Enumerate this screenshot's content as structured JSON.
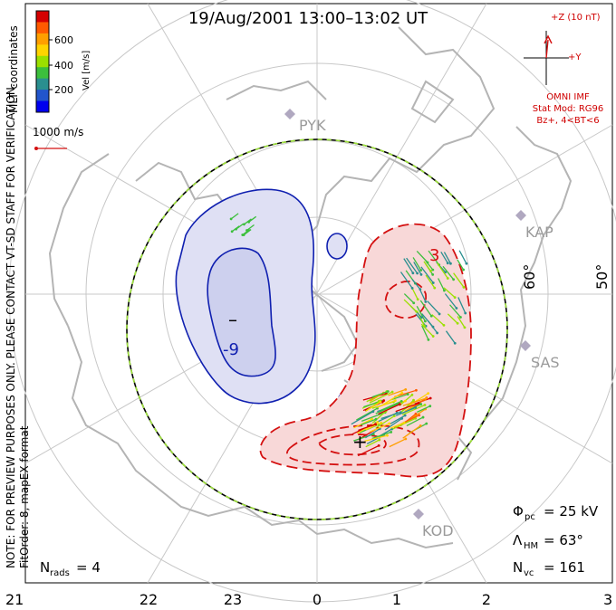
{
  "title": "19/Aug/2001 13:00–13:02 UT",
  "coordinate_label": "MLT coordinates",
  "colorbar": {
    "label": "Vel [m/s]",
    "ticks": [
      "600",
      "400",
      "200"
    ],
    "colors": [
      "#d40000",
      "#ff5a00",
      "#ff9f00",
      "#ffd400",
      "#9be000",
      "#3cbf3c",
      "#2a8f8f",
      "#2255cc",
      "#0000ee"
    ]
  },
  "scale_vector_label": "1000 m/s",
  "imf": {
    "z_label": "+Z (10 nT)",
    "y_label": "+Y",
    "source": "OMNI IMF",
    "model": "Stat Mod: RG96",
    "condition": "Bz+, 4<BT<6"
  },
  "notes": {
    "preview": "NOTE: FOR PREVIEW PURPOSES ONLY. PLEASE CONTACT VT-SD STAFF FOR VERIFICATION.",
    "fit": "FitOrder: 8, mapEX format"
  },
  "radars": [
    "PYK",
    "KAP",
    "SAS",
    "KOD"
  ],
  "latitude_labels": [
    "60°",
    "50°"
  ],
  "contour_labels": {
    "negative": "-9",
    "positive": "3"
  },
  "extrema": {
    "min": "–",
    "max": "+"
  },
  "stats": {
    "phi_symbol": "Φ",
    "phi_sub": "pc",
    "phi_value": "= 25 kV",
    "lambda_symbol": "Λ",
    "lambda_sub": "HM",
    "lambda_value": "= 63°",
    "nvc_symbol": "N",
    "nvc_sub": "vc",
    "nvc_value": "= 161",
    "nrads_symbol": "N",
    "nrads_sub": "rads",
    "nrads_value": "= 4"
  },
  "mlt_axis": [
    "21",
    "22",
    "23",
    "0",
    "1",
    "2",
    "3"
  ],
  "colors": {
    "negative_cell": "#1020b0",
    "negative_fill": "#dfe0f4",
    "positive_cell": "#d41010",
    "positive_fill": "#f8d8d8",
    "grid": "#c8c8c8",
    "coast": "#b4b4b4"
  }
}
